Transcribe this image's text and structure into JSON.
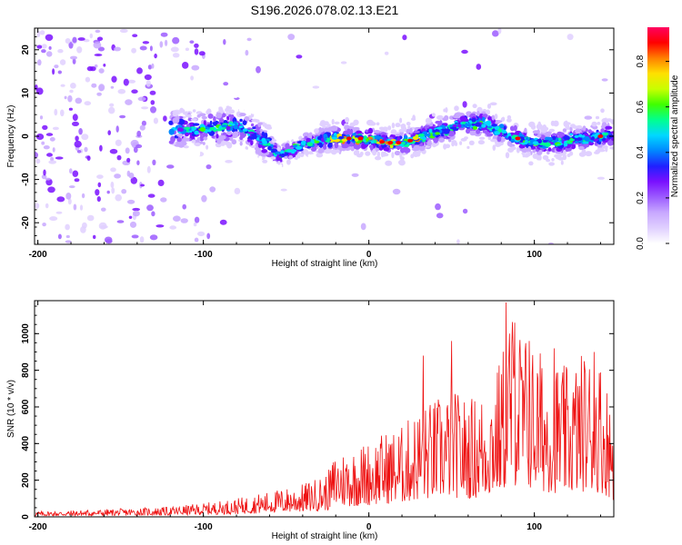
{
  "figure_title": "S196.2026.078.02.13.E21",
  "colors": {
    "snr_line": "#ee1111",
    "axis": "#000000",
    "colormap": [
      "#ffffff",
      "#e0d0ff",
      "#c8a8ff",
      "#9c5cff",
      "#7a10ff",
      "#2020ff",
      "#0088ff",
      "#00d8ff",
      "#00ff90",
      "#40ff00",
      "#c8ff00",
      "#ffe000",
      "#ff8000",
      "#ff0000",
      "#ff0060"
    ]
  },
  "chart_data": [
    {
      "type": "heatmap",
      "name": "spectrogram",
      "title": "",
      "xlabel": "Height of straight line (km)",
      "ylabel": "Frequency (Hz)",
      "xlim": [
        -202,
        148
      ],
      "ylim": [
        -25,
        25
      ],
      "xticks": [
        -200,
        -100,
        0,
        100
      ],
      "xtick_labels": [
        "-200",
        "-100",
        "0",
        "100"
      ],
      "yticks": [
        -20,
        -10,
        0,
        10,
        20
      ],
      "ytick_labels": [
        "-20",
        "-10",
        "0",
        "10",
        "20"
      ],
      "ridge_frequency_hz": {
        "x": [
          -120,
          -100,
          -80,
          -70,
          -60,
          -55,
          -50,
          -40,
          -30,
          -20,
          -10,
          0,
          10,
          20,
          30,
          40,
          50,
          60,
          70,
          80,
          90,
          100,
          110,
          120,
          130,
          140,
          148
        ],
        "y": [
          1.5,
          1.5,
          2.5,
          0.5,
          -2,
          -4.5,
          -4,
          -2,
          -1,
          -0.5,
          -0.5,
          -0.5,
          -1.5,
          -1.5,
          -0.5,
          1,
          2,
          3,
          3,
          1,
          -0.5,
          -1.5,
          -1.5,
          -1,
          -0.5,
          0,
          0.5
        ]
      },
      "colorbar": {
        "label": "Normalized spectral amplitude",
        "range": [
          0,
          0.95
        ],
        "ticks": [
          0.0,
          0.2,
          0.4,
          0.6,
          0.8
        ],
        "tick_labels": [
          "0.0",
          "0.2",
          "0.4",
          "0.6",
          "0.8"
        ]
      }
    },
    {
      "type": "line",
      "name": "snr",
      "title": "",
      "xlabel": "Height of straight line (km)",
      "ylabel": "SNR (10 * v/v)",
      "xlim": [
        -202,
        148
      ],
      "ylim": [
        0,
        1180
      ],
      "xticks": [
        -200,
        -100,
        0,
        100
      ],
      "xtick_labels": [
        "-200",
        "-100",
        "0",
        "100"
      ],
      "yticks": [
        0,
        200,
        400,
        600,
        800,
        1000
      ],
      "ytick_labels": [
        "0",
        "200",
        "400",
        "600",
        "800",
        "1000"
      ],
      "envelope": {
        "x": [
          -202,
          -180,
          -150,
          -120,
          -100,
          -80,
          -60,
          -40,
          -25,
          -20,
          -10,
          0,
          10,
          20,
          30,
          40,
          50,
          60,
          70,
          80,
          85,
          90,
          100,
          110,
          120,
          130,
          140,
          148
        ],
        "y": [
          30,
          35,
          45,
          55,
          75,
          100,
          140,
          180,
          240,
          360,
          380,
          420,
          470,
          500,
          600,
          650,
          700,
          650,
          700,
          880,
          1170,
          1080,
          940,
          880,
          820,
          920,
          880,
          600
        ]
      },
      "peaks": [
        {
          "x": 33,
          "y": 880
        },
        {
          "x": 50,
          "y": 960
        },
        {
          "x": 83,
          "y": 1170
        },
        {
          "x": 88,
          "y": 1060
        },
        {
          "x": 97,
          "y": 960
        },
        {
          "x": 112,
          "y": 920
        },
        {
          "x": 136,
          "y": 900
        }
      ]
    }
  ]
}
